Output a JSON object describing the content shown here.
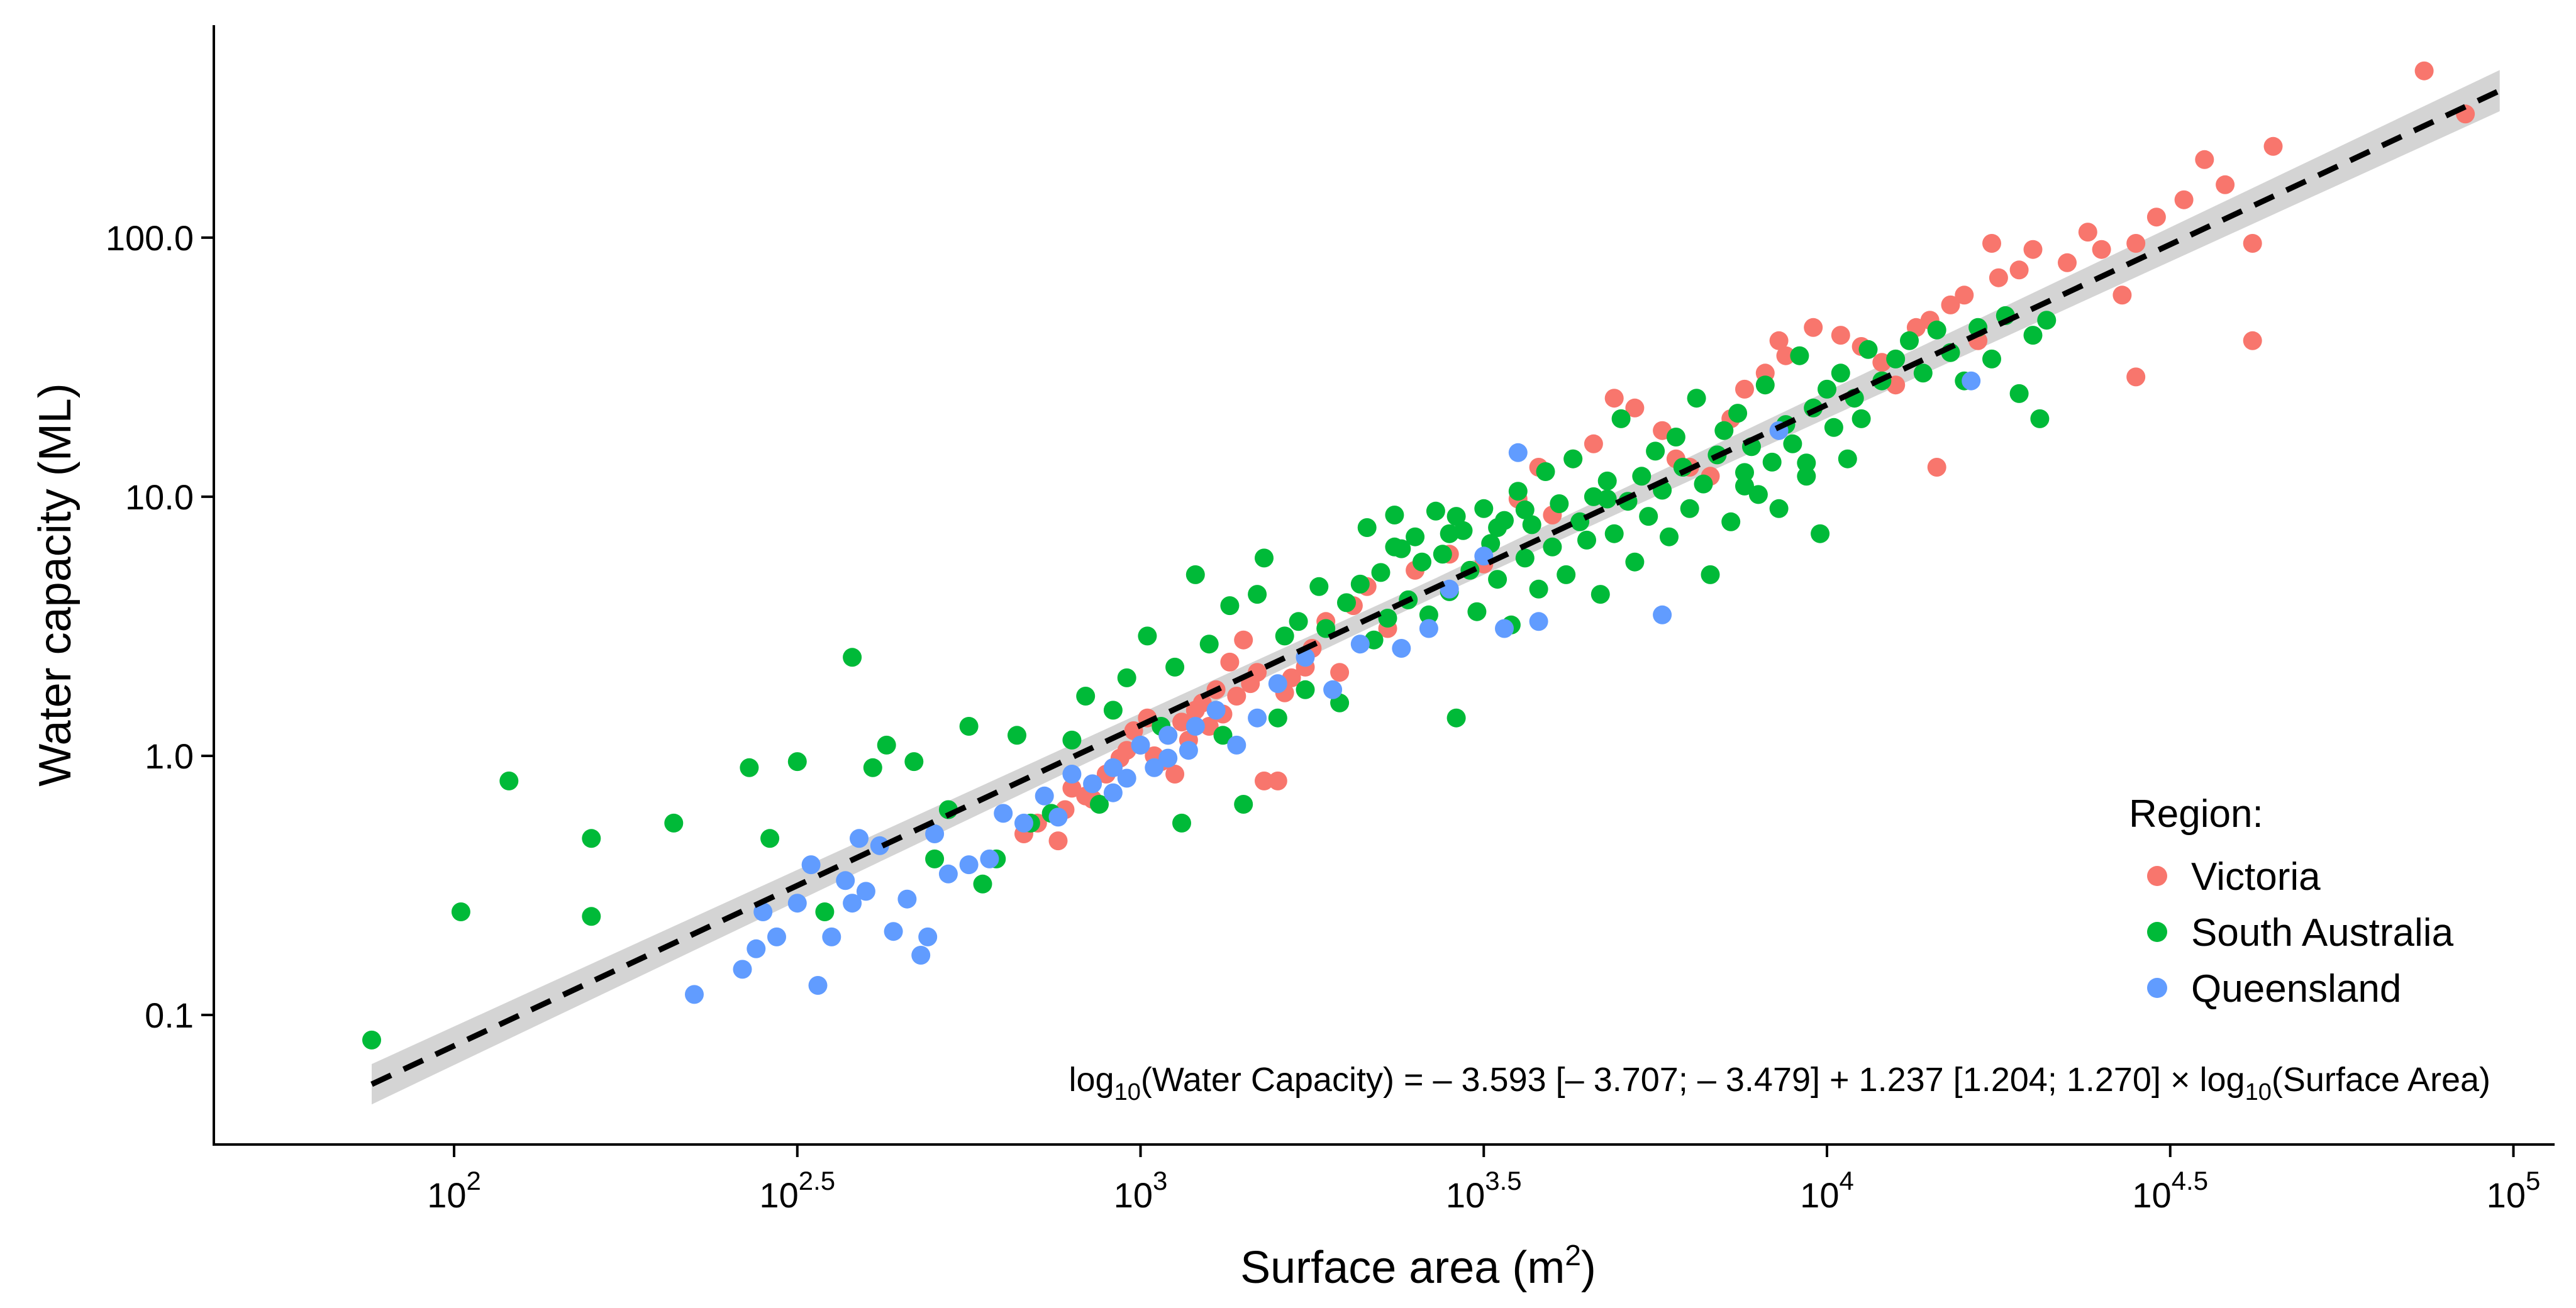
{
  "chart_data": {
    "type": "scatter",
    "title": "",
    "xlabel": "Surface area (m2)",
    "xlabel_parts": {
      "text": "Surface area (m",
      "sup": "2",
      "close": ")"
    },
    "ylabel": "Water capacity (ML)",
    "x_scale": "log10",
    "y_scale": "log10",
    "xlim_log10": [
      1.65,
      5.06
    ],
    "ylim_log10": [
      -1.5,
      2.82
    ],
    "x_ticks": [
      {
        "exp": "2",
        "log": 2.0
      },
      {
        "exp": "2.5",
        "log": 2.5
      },
      {
        "exp": "3",
        "log": 3.0
      },
      {
        "exp": "3.5",
        "log": 3.5
      },
      {
        "exp": "4",
        "log": 4.0
      },
      {
        "exp": "4.5",
        "log": 4.5
      },
      {
        "exp": "5",
        "log": 5.0
      }
    ],
    "y_ticks": [
      {
        "label": "0.1",
        "log": -1.0
      },
      {
        "label": "1.0",
        "log": 0.0
      },
      {
        "label": "10.0",
        "log": 1.0
      },
      {
        "label": "100.0",
        "log": 2.0
      }
    ],
    "legend": {
      "title": "Region:",
      "position": "right",
      "entries": [
        {
          "name": "Victoria",
          "color": "#F8766D"
        },
        {
          "name": "South Australia",
          "color": "#00BA38"
        },
        {
          "name": "Queensland",
          "color": "#619CFF"
        }
      ]
    },
    "fit": {
      "intercept": -3.593,
      "slope": 1.237,
      "style": "dashed",
      "color": "#000000",
      "band_color": "#CCCCCC",
      "x_range_log10": [
        1.88,
        4.98
      ]
    },
    "equation": {
      "lhs_pre": "log",
      "lhs_sub": "10",
      "lhs_post": "(Water Capacity) = – 3.593 [– 3.707; – 3.479] + 1.237 [1.204; 1.270] × log",
      "rhs_sub": "10",
      "rhs_post": "(Surface Area)"
    },
    "series": [
      {
        "name": "Victoria",
        "color": "#F8766D",
        "points": [
          [
            2.83,
            0.5
          ],
          [
            2.85,
            0.55
          ],
          [
            2.88,
            0.47
          ],
          [
            2.89,
            0.62
          ],
          [
            2.9,
            0.75
          ],
          [
            2.92,
            0.7
          ],
          [
            2.93,
            0.68
          ],
          [
            2.95,
            0.85
          ],
          [
            2.96,
            0.9
          ],
          [
            2.97,
            0.98
          ],
          [
            2.98,
            1.05
          ],
          [
            2.99,
            1.25
          ],
          [
            3.0,
            1.1
          ],
          [
            3.01,
            1.4
          ],
          [
            3.02,
            1.0
          ],
          [
            3.03,
            0.95
          ],
          [
            3.04,
            1.2
          ],
          [
            3.05,
            0.85
          ],
          [
            3.06,
            1.35
          ],
          [
            3.07,
            1.15
          ],
          [
            3.08,
            1.5
          ],
          [
            3.09,
            1.6
          ],
          [
            3.1,
            1.3
          ],
          [
            3.11,
            1.8
          ],
          [
            3.12,
            1.45
          ],
          [
            3.13,
            2.3
          ],
          [
            3.14,
            1.7
          ],
          [
            3.15,
            2.8
          ],
          [
            3.16,
            1.9
          ],
          [
            3.17,
            2.1
          ],
          [
            3.18,
            0.8
          ],
          [
            3.2,
            0.8
          ],
          [
            3.21,
            1.75
          ],
          [
            3.22,
            2.0
          ],
          [
            3.24,
            2.2
          ],
          [
            3.25,
            2.6
          ],
          [
            3.27,
            3.3
          ],
          [
            3.29,
            2.1
          ],
          [
            3.31,
            3.8
          ],
          [
            3.33,
            4.5
          ],
          [
            3.36,
            3.1
          ],
          [
            3.4,
            5.2
          ],
          [
            3.45,
            6.0
          ],
          [
            3.5,
            5.5
          ],
          [
            3.55,
            9.8
          ],
          [
            3.58,
            13.0
          ],
          [
            3.63,
            14.0
          ],
          [
            3.66,
            16.0
          ],
          [
            3.69,
            24.0
          ],
          [
            3.72,
            22.0
          ],
          [
            3.76,
            18.0
          ],
          [
            3.8,
            13.0
          ],
          [
            3.83,
            12.0
          ],
          [
            3.86,
            20.0
          ],
          [
            3.88,
            26.0
          ],
          [
            3.91,
            30.0
          ],
          [
            3.94,
            35.0
          ],
          [
            3.98,
            45.0
          ],
          [
            4.02,
            42.0
          ],
          [
            4.05,
            38.0
          ],
          [
            4.08,
            33.0
          ],
          [
            4.1,
            27.0
          ],
          [
            4.13,
            45.0
          ],
          [
            4.15,
            48.0
          ],
          [
            4.16,
            13.0
          ],
          [
            4.18,
            55.0
          ],
          [
            4.2,
            60.0
          ],
          [
            4.22,
            40.0
          ],
          [
            4.24,
            95.0
          ],
          [
            4.25,
            70.0
          ],
          [
            4.28,
            75.0
          ],
          [
            4.3,
            90.0
          ],
          [
            4.35,
            80.0
          ],
          [
            4.38,
            105.0
          ],
          [
            4.4,
            90.0
          ],
          [
            4.45,
            95.0
          ],
          [
            4.48,
            120.0
          ],
          [
            4.52,
            140.0
          ],
          [
            4.55,
            200.0
          ],
          [
            4.58,
            160.0
          ],
          [
            4.62,
            95.0
          ],
          [
            4.62,
            40.0
          ],
          [
            4.65,
            225.0
          ],
          [
            4.45,
            29.0
          ],
          [
            4.87,
            440.0
          ],
          [
            4.93,
            300.0
          ],
          [
            4.43,
            60.0
          ],
          [
            3.93,
            40.0
          ],
          [
            3.78,
            14.0
          ],
          [
            3.6,
            8.5
          ]
        ]
      },
      {
        "name": "South Australia",
        "color": "#00BA38",
        "points": [
          [
            1.88,
            0.08
          ],
          [
            2.01,
            0.25
          ],
          [
            2.08,
            0.8
          ],
          [
            2.2,
            0.24
          ],
          [
            2.2,
            0.48
          ],
          [
            2.32,
            0.55
          ],
          [
            2.43,
            0.9
          ],
          [
            2.46,
            0.48
          ],
          [
            2.5,
            0.95
          ],
          [
            2.54,
            0.25
          ],
          [
            2.58,
            2.4
          ],
          [
            2.61,
            0.9
          ],
          [
            2.63,
            1.1
          ],
          [
            2.67,
            0.95
          ],
          [
            2.7,
            0.4
          ],
          [
            2.72,
            0.62
          ],
          [
            2.75,
            1.3
          ],
          [
            2.77,
            0.32
          ],
          [
            2.79,
            0.4
          ],
          [
            2.82,
            1.2
          ],
          [
            2.84,
            0.55
          ],
          [
            2.87,
            0.6
          ],
          [
            2.9,
            1.15
          ],
          [
            2.92,
            1.7
          ],
          [
            2.94,
            0.65
          ],
          [
            2.96,
            1.5
          ],
          [
            2.98,
            2.0
          ],
          [
            3.01,
            2.9
          ],
          [
            3.03,
            1.3
          ],
          [
            3.05,
            2.2
          ],
          [
            3.06,
            0.55
          ],
          [
            3.08,
            5.0
          ],
          [
            3.1,
            2.7
          ],
          [
            3.12,
            1.2
          ],
          [
            3.13,
            3.8
          ],
          [
            3.15,
            0.65
          ],
          [
            3.17,
            4.2
          ],
          [
            3.18,
            5.8
          ],
          [
            3.2,
            1.4
          ],
          [
            3.21,
            2.9
          ],
          [
            3.23,
            3.3
          ],
          [
            3.24,
            1.8
          ],
          [
            3.26,
            4.5
          ],
          [
            3.27,
            3.1
          ],
          [
            3.29,
            1.6
          ],
          [
            3.3,
            3.9
          ],
          [
            3.32,
            4.6
          ],
          [
            3.33,
            7.6
          ],
          [
            3.34,
            2.8
          ],
          [
            3.35,
            5.1
          ],
          [
            3.36,
            3.4
          ],
          [
            3.37,
            8.5
          ],
          [
            3.38,
            6.3
          ],
          [
            3.39,
            4.0
          ],
          [
            3.4,
            7.0
          ],
          [
            3.41,
            5.6
          ],
          [
            3.42,
            3.5
          ],
          [
            3.43,
            8.8
          ],
          [
            3.44,
            6.0
          ],
          [
            3.45,
            4.3
          ],
          [
            3.46,
            1.4
          ],
          [
            3.47,
            7.4
          ],
          [
            3.48,
            5.2
          ],
          [
            3.49,
            3.6
          ],
          [
            3.5,
            9.0
          ],
          [
            3.51,
            6.6
          ],
          [
            3.52,
            4.8
          ],
          [
            3.53,
            8.1
          ],
          [
            3.54,
            3.2
          ],
          [
            3.55,
            10.5
          ],
          [
            3.56,
            5.8
          ],
          [
            3.57,
            7.8
          ],
          [
            3.58,
            4.4
          ],
          [
            3.59,
            12.5
          ],
          [
            3.6,
            6.4
          ],
          [
            3.61,
            9.4
          ],
          [
            3.62,
            5.0
          ],
          [
            3.63,
            14.0
          ],
          [
            3.64,
            8.0
          ],
          [
            3.65,
            6.8
          ],
          [
            3.66,
            10.0
          ],
          [
            3.67,
            4.2
          ],
          [
            3.68,
            11.5
          ],
          [
            3.69,
            7.2
          ],
          [
            3.7,
            20.0
          ],
          [
            3.71,
            9.6
          ],
          [
            3.72,
            5.6
          ],
          [
            3.73,
            12.0
          ],
          [
            3.74,
            8.4
          ],
          [
            3.75,
            15.0
          ],
          [
            3.76,
            10.6
          ],
          [
            3.77,
            7.0
          ],
          [
            3.78,
            17.0
          ],
          [
            3.79,
            13.0
          ],
          [
            3.8,
            9.0
          ],
          [
            3.81,
            24.0
          ],
          [
            3.82,
            11.2
          ],
          [
            3.83,
            5.0
          ],
          [
            3.84,
            14.5
          ],
          [
            3.85,
            18.0
          ],
          [
            3.86,
            8.0
          ],
          [
            3.87,
            21.0
          ],
          [
            3.88,
            12.4
          ],
          [
            3.89,
            15.6
          ],
          [
            3.9,
            10.2
          ],
          [
            3.91,
            27.0
          ],
          [
            3.92,
            13.6
          ],
          [
            3.93,
            9.0
          ],
          [
            3.94,
            19.0
          ],
          [
            3.95,
            16.0
          ],
          [
            3.96,
            35.0
          ],
          [
            3.97,
            12.0
          ],
          [
            3.98,
            22.0
          ],
          [
            3.99,
            7.2
          ],
          [
            4.0,
            26.0
          ],
          [
            4.01,
            18.5
          ],
          [
            4.02,
            30.0
          ],
          [
            4.03,
            14.0
          ],
          [
            4.04,
            24.0
          ],
          [
            4.05,
            20.0
          ],
          [
            4.06,
            37.0
          ],
          [
            4.08,
            28.0
          ],
          [
            4.1,
            34.0
          ],
          [
            4.12,
            40.0
          ],
          [
            4.14,
            30.0
          ],
          [
            4.16,
            44.0
          ],
          [
            4.18,
            36.0
          ],
          [
            4.2,
            28.0
          ],
          [
            4.22,
            45.0
          ],
          [
            4.24,
            34.0
          ],
          [
            4.26,
            50.0
          ],
          [
            4.28,
            25.0
          ],
          [
            4.3,
            42.0
          ],
          [
            4.31,
            20.0
          ],
          [
            4.32,
            48.0
          ],
          [
            3.46,
            8.4
          ],
          [
            3.52,
            7.6
          ],
          [
            3.37,
            6.4
          ],
          [
            3.68,
            9.8
          ],
          [
            3.45,
            7.2
          ],
          [
            3.56,
            8.9
          ],
          [
            3.88,
            11.0
          ],
          [
            3.97,
            13.5
          ]
        ]
      },
      {
        "name": "Queensland",
        "color": "#619CFF",
        "points": [
          [
            2.35,
            0.12
          ],
          [
            2.42,
            0.15
          ],
          [
            2.44,
            0.18
          ],
          [
            2.45,
            0.25
          ],
          [
            2.47,
            0.2
          ],
          [
            2.5,
            0.27
          ],
          [
            2.52,
            0.38
          ],
          [
            2.53,
            0.13
          ],
          [
            2.55,
            0.2
          ],
          [
            2.57,
            0.33
          ],
          [
            2.58,
            0.27
          ],
          [
            2.59,
            0.48
          ],
          [
            2.6,
            0.3
          ],
          [
            2.62,
            0.45
          ],
          [
            2.64,
            0.21
          ],
          [
            2.66,
            0.28
          ],
          [
            2.68,
            0.17
          ],
          [
            2.69,
            0.2
          ],
          [
            2.7,
            0.5
          ],
          [
            2.72,
            0.35
          ],
          [
            2.75,
            0.38
          ],
          [
            2.78,
            0.4
          ],
          [
            2.8,
            0.6
          ],
          [
            2.83,
            0.55
          ],
          [
            2.86,
            0.7
          ],
          [
            2.88,
            0.58
          ],
          [
            2.9,
            0.85
          ],
          [
            2.93,
            0.78
          ],
          [
            2.96,
            0.9
          ],
          [
            2.98,
            0.82
          ],
          [
            3.0,
            1.1
          ],
          [
            3.02,
            0.9
          ],
          [
            3.04,
            1.2
          ],
          [
            3.08,
            1.3
          ],
          [
            3.11,
            1.5
          ],
          [
            3.14,
            1.1
          ],
          [
            3.17,
            1.4
          ],
          [
            3.2,
            1.9
          ],
          [
            3.24,
            2.4
          ],
          [
            3.28,
            1.8
          ],
          [
            3.32,
            2.7
          ],
          [
            3.38,
            2.6
          ],
          [
            3.42,
            3.1
          ],
          [
            3.45,
            4.4
          ],
          [
            3.5,
            5.9
          ],
          [
            3.53,
            3.1
          ],
          [
            3.55,
            14.8
          ],
          [
            3.58,
            3.3
          ],
          [
            3.76,
            3.5
          ],
          [
            3.93,
            18.0
          ],
          [
            4.21,
            28.0
          ],
          [
            3.04,
            0.98
          ],
          [
            2.96,
            0.72
          ],
          [
            3.07,
            1.05
          ]
        ]
      }
    ]
  }
}
